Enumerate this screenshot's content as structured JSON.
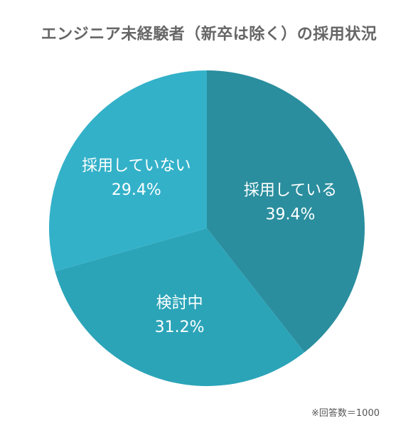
{
  "chart_data": {
    "type": "pie",
    "title": "エンジニア未経験者（新卒は除く）の採用状況",
    "slices": [
      {
        "label": "採用している",
        "value": 39.4,
        "value_label": "39.4%",
        "color": "#2a8e9e"
      },
      {
        "label": "検討中",
        "value": 31.2,
        "value_label": "31.2%",
        "color": "#2ba4b8"
      },
      {
        "label": "採用していない",
        "value": 29.4,
        "value_label": "29.4%",
        "color": "#33b1c9"
      }
    ],
    "start": "12 o'clock",
    "direction": "clockwise",
    "label_color": "#ffffff"
  },
  "footnote": "※回答数＝1000"
}
